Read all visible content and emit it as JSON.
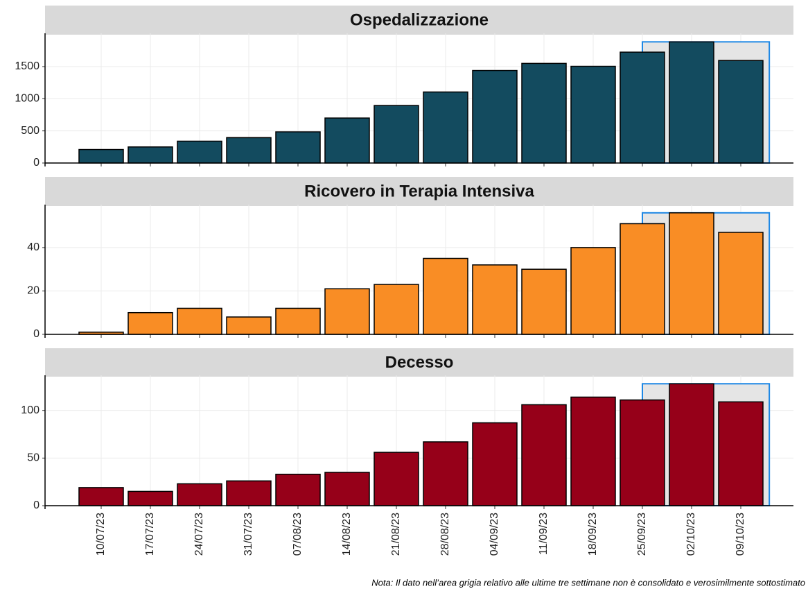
{
  "chart_data": [
    {
      "type": "bar",
      "title": "Ospedalizzazione",
      "color": "#134b5f",
      "categories": [
        "10/07/23",
        "17/07/23",
        "24/07/23",
        "31/07/23",
        "07/08/23",
        "14/08/23",
        "21/08/23",
        "28/08/23",
        "04/09/23",
        "11/09/23",
        "18/09/23",
        "25/09/23",
        "02/10/23",
        "09/10/23"
      ],
      "values": [
        210,
        250,
        340,
        395,
        485,
        700,
        895,
        1105,
        1440,
        1550,
        1505,
        1725,
        1885,
        1595
      ],
      "ylim": [
        0,
        1975
      ],
      "yticks": [
        0,
        500,
        1000,
        1500
      ],
      "grid": true
    },
    {
      "type": "bar",
      "title": "Ricovero in Terapia Intensiva",
      "color": "#f98d25",
      "categories": [
        "10/07/23",
        "17/07/23",
        "24/07/23",
        "31/07/23",
        "07/08/23",
        "14/08/23",
        "21/08/23",
        "28/08/23",
        "04/09/23",
        "11/09/23",
        "18/09/23",
        "25/09/23",
        "02/10/23",
        "09/10/23"
      ],
      "values": [
        1,
        10,
        12,
        8,
        12,
        21,
        23,
        35,
        32,
        30,
        40,
        51,
        56,
        47
      ],
      "ylim": [
        0,
        58.5
      ],
      "yticks": [
        0,
        20,
        40
      ],
      "grid": true
    },
    {
      "type": "bar",
      "title": "Decesso",
      "color": "#960019",
      "categories": [
        "10/07/23",
        "17/07/23",
        "24/07/23",
        "31/07/23",
        "07/08/23",
        "14/08/23",
        "21/08/23",
        "28/08/23",
        "04/09/23",
        "11/09/23",
        "18/09/23",
        "25/09/23",
        "02/10/23",
        "09/10/23"
      ],
      "values": [
        19,
        15,
        23,
        26,
        33,
        35,
        56,
        67,
        87,
        106,
        114,
        111,
        128,
        109
      ],
      "ylim": [
        0,
        134
      ],
      "yticks": [
        0,
        50,
        100
      ],
      "grid": true
    }
  ],
  "highlight": {
    "from": "25/09/23",
    "fill": "#e5e5e5",
    "stroke": "#1e88e5"
  },
  "note": "Nota: Il dato nell’area grigia relativo alle ultime tre settimane non è consolidato e verosimilmente sottostimato"
}
